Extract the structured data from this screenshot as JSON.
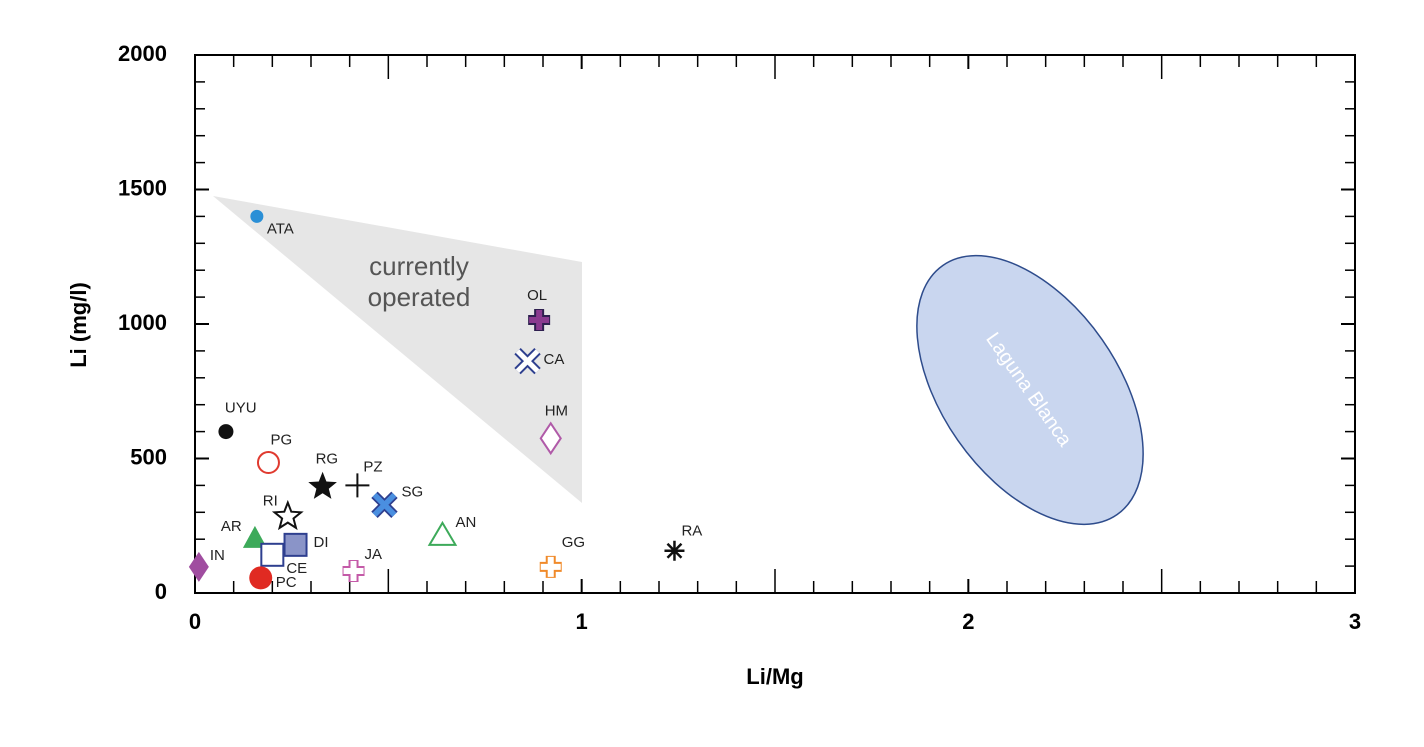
{
  "chart_data": {
    "type": "scatter",
    "x_label": "Li/Mg",
    "y_label": "Li (mg/l)",
    "xlim": [
      0,
      3
    ],
    "ylim": [
      0,
      2000
    ],
    "xticks": [
      0,
      1,
      2,
      3
    ],
    "yticks": [
      0,
      500,
      1000,
      1500,
      2000
    ],
    "annotations": [
      "currently",
      "operated",
      "Laguna Blanca"
    ],
    "series": [
      {
        "name": "ATA",
        "color": "#2a8fd6",
        "marker": "dot",
        "x": [
          0.16
        ],
        "values": [
          1400
        ]
      },
      {
        "name": "UYU",
        "color": "#111111",
        "marker": "dot-large",
        "x": [
          0.08
        ],
        "values": [
          600
        ]
      },
      {
        "name": "PG",
        "color": "#e03a2f",
        "marker": "circle-open",
        "x": [
          0.19
        ],
        "values": [
          485
        ]
      },
      {
        "name": "RG",
        "color": "#111111",
        "marker": "star",
        "x": [
          0.33
        ],
        "values": [
          395
        ]
      },
      {
        "name": "PZ",
        "color": "#111111",
        "marker": "plus-thin",
        "x": [
          0.42
        ],
        "values": [
          400
        ]
      },
      {
        "name": "SG",
        "color": "#4a8fe0",
        "marker": "x-filled",
        "x": [
          0.49
        ],
        "values": [
          328
        ]
      },
      {
        "name": "RI",
        "color": "#111111",
        "marker": "star-open",
        "x": [
          0.24
        ],
        "values": [
          284
        ]
      },
      {
        "name": "AR",
        "color": "#3daa5a",
        "marker": "triangle",
        "x": [
          0.155
        ],
        "values": [
          205
        ]
      },
      {
        "name": "AN",
        "color": "#3daa5a",
        "marker": "triangle-open",
        "x": [
          0.64
        ],
        "values": [
          216
        ]
      },
      {
        "name": "DI",
        "color": "#8a94c8",
        "marker": "square",
        "x": [
          0.26
        ],
        "values": [
          179
        ]
      },
      {
        "name": "CE",
        "color": "#2e3f8f",
        "marker": "square-open",
        "x": [
          0.2
        ],
        "values": [
          142
        ]
      },
      {
        "name": "IN",
        "color": "#a04da0",
        "marker": "diamond",
        "x": [
          0.01
        ],
        "values": [
          97
        ]
      },
      {
        "name": "PC",
        "color": "#e02a22",
        "marker": "circle",
        "x": [
          0.17
        ],
        "values": [
          56
        ]
      },
      {
        "name": "JA",
        "color": "#c45aa8",
        "marker": "plus-open",
        "x": [
          0.41
        ],
        "values": [
          82
        ]
      },
      {
        "name": "GG",
        "color": "#f08a2a",
        "marker": "plus-open",
        "x": [
          0.92
        ],
        "values": [
          97
        ]
      },
      {
        "name": "RA",
        "color": "#111111",
        "marker": "asterisk",
        "x": [
          1.24
        ],
        "values": [
          157
        ]
      },
      {
        "name": "OL",
        "color": "#8a3a8f",
        "marker": "plus-filled",
        "x": [
          0.89
        ],
        "values": [
          1015
        ]
      },
      {
        "name": "CA",
        "color": "#2e3f8f",
        "marker": "x-open",
        "x": [
          0.86
        ],
        "values": [
          862
        ]
      },
      {
        "name": "HM",
        "color": "#b05aa8",
        "marker": "diamond-open",
        "x": [
          0.92
        ],
        "values": [
          575
        ]
      }
    ]
  }
}
